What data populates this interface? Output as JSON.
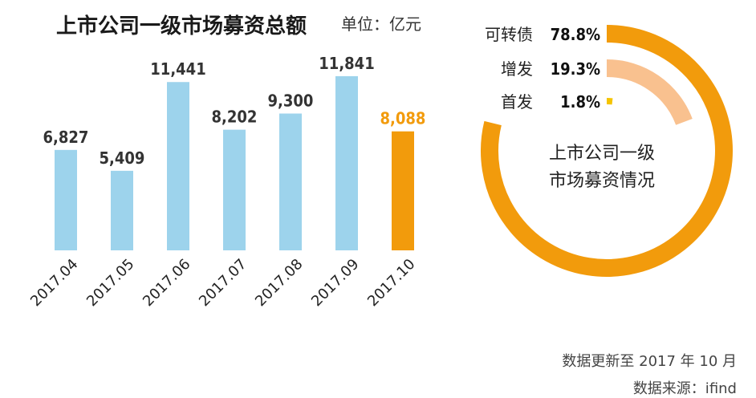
{
  "title": "上市公司一级市场募资总额",
  "unit": "单位：亿元",
  "chart_data": [
    {
      "type": "bar",
      "title": "上市公司一级市场募资总额",
      "unit": "单位：亿元",
      "categories": [
        "2017.04",
        "2017.05",
        "2017.06",
        "2017.07",
        "2017.08",
        "2017.09",
        "2017.10"
      ],
      "values": [
        6827,
        5409,
        11441,
        8202,
        9300,
        11841,
        8088
      ],
      "value_labels": [
        "6,827",
        "5,409",
        "11,441",
        "8,202",
        "9,300",
        "11,841",
        "8,088"
      ],
      "colors": [
        "#9dd3ec",
        "#9dd3ec",
        "#9dd3ec",
        "#9dd3ec",
        "#9dd3ec",
        "#9dd3ec",
        "#f29b0c"
      ],
      "label_colors": [
        "#333333",
        "#333333",
        "#333333",
        "#333333",
        "#333333",
        "#333333",
        "#f29b0c"
      ],
      "ylim": [
        0,
        12000
      ],
      "grid": false
    },
    {
      "type": "radial-bar",
      "title": "上市公司一级市场募资情况",
      "title_lines": [
        "上市公司一级",
        "市场募资情况"
      ],
      "categories": [
        "可转债",
        "增发",
        "首发"
      ],
      "values": [
        78.8,
        19.3,
        1.8
      ],
      "value_labels": [
        "78.8%",
        "19.3%",
        "1.8%"
      ],
      "colors": [
        "#f29b0c",
        "#f9c18f",
        "#f5c400"
      ]
    }
  ],
  "footer": {
    "updated": "数据更新至 2017 年 10 月",
    "source": "数据来源：ifind"
  }
}
